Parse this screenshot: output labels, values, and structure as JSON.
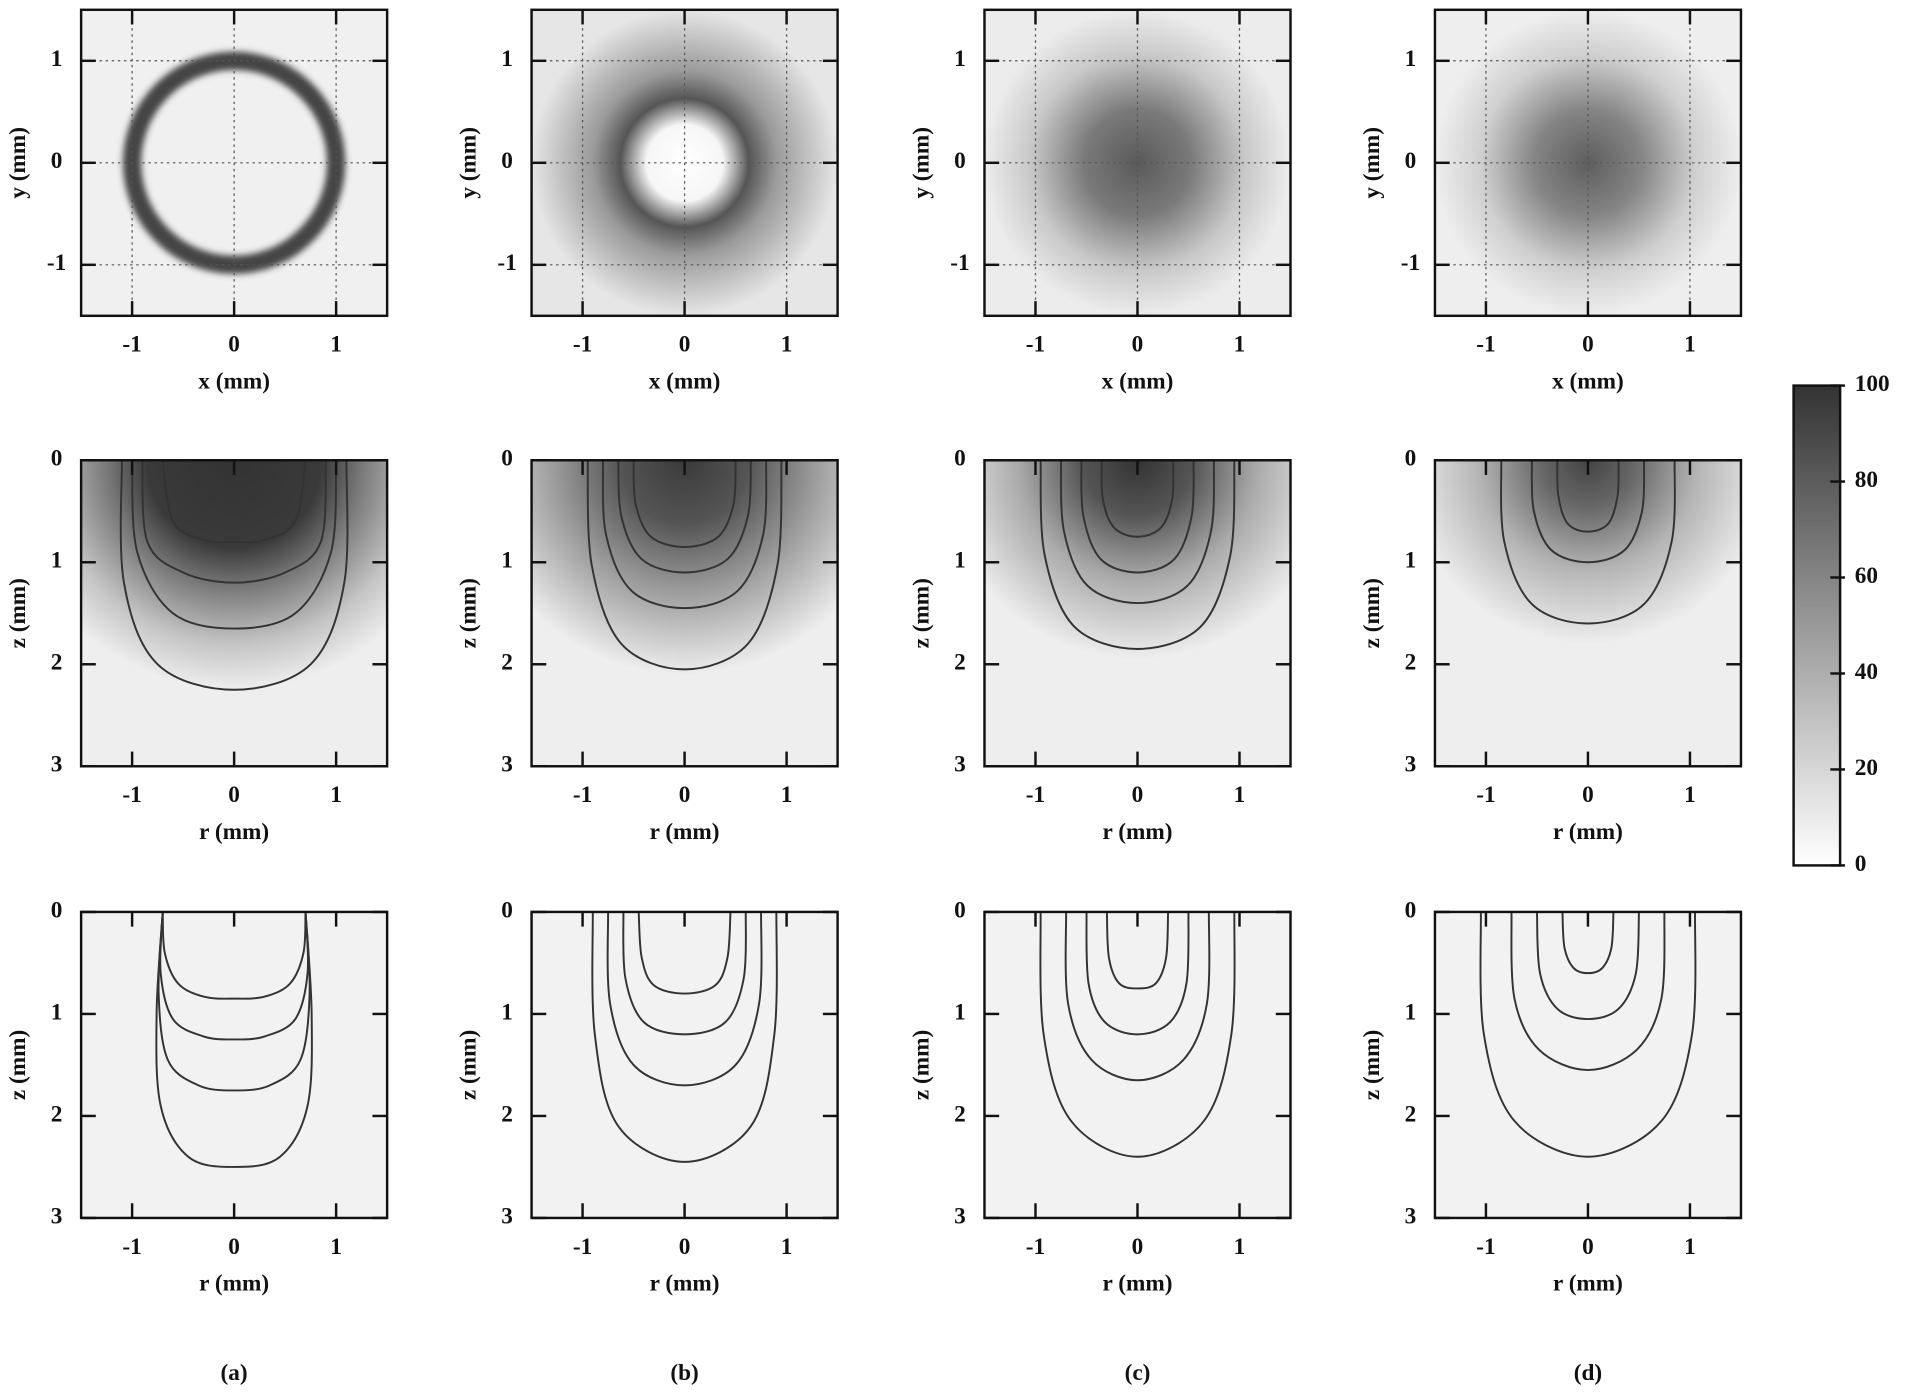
{
  "chart_data": [
    {
      "type": "heatmap",
      "xlabel": "x (mm)",
      "ylabel": "y (mm)",
      "xlim": [
        -1.5,
        1.5
      ],
      "ylim": [
        -1.5,
        1.5
      ],
      "xticks": [
        -1,
        0,
        1
      ],
      "yticks": [
        -1,
        0,
        1
      ],
      "grid": true
    },
    {
      "type": "heatmap",
      "xlabel": "x (mm)",
      "ylabel": "y (mm)",
      "xlim": [
        -1.5,
        1.5
      ],
      "ylim": [
        -1.5,
        1.5
      ],
      "xticks": [
        -1,
        0,
        1
      ],
      "yticks": [
        -1,
        0,
        1
      ],
      "grid": true
    },
    {
      "type": "heatmap",
      "xlabel": "x (mm)",
      "ylabel": "y (mm)",
      "xlim": [
        -1.5,
        1.5
      ],
      "ylim": [
        -1.5,
        1.5
      ],
      "xticks": [
        -1,
        0,
        1
      ],
      "yticks": [
        -1,
        0,
        1
      ],
      "grid": true
    },
    {
      "type": "heatmap",
      "xlabel": "x (mm)",
      "ylabel": "y (mm)",
      "xlim": [
        -1.5,
        1.5
      ],
      "ylim": [
        -1.5,
        1.5
      ],
      "xticks": [
        -1,
        0,
        1
      ],
      "yticks": [
        -1,
        0,
        1
      ],
      "grid": true
    },
    {
      "type": "heatmap_contour",
      "xlabel": "r (mm)",
      "ylabel": "z (mm)",
      "xlim": [
        -1.5,
        1.5
      ],
      "ylim": [
        3,
        0
      ],
      "xticks": [
        -1,
        0,
        1
      ],
      "yticks": [
        0,
        1,
        2,
        3
      ],
      "contours": [
        {
          "r": [
            -0.7,
            -0.6,
            -0.3,
            0,
            0.3,
            0.6,
            0.7
          ],
          "z": [
            0,
            0.6,
            0.78,
            0.8,
            0.78,
            0.6,
            0
          ]
        },
        {
          "r": [
            -0.9,
            -0.85,
            -0.5,
            0,
            0.5,
            0.85,
            0.9
          ],
          "z": [
            0,
            0.8,
            1.1,
            1.2,
            1.1,
            0.8,
            0
          ]
        },
        {
          "r": [
            -1.0,
            -0.95,
            -0.6,
            0,
            0.6,
            0.95,
            1.0
          ],
          "z": [
            0,
            0.9,
            1.5,
            1.65,
            1.5,
            0.9,
            0
          ]
        },
        {
          "r": [
            -1.1,
            -1.08,
            -0.75,
            0,
            0.75,
            1.08,
            1.1
          ],
          "z": [
            0,
            1.2,
            2.0,
            2.25,
            2.0,
            1.2,
            0
          ]
        }
      ]
    },
    {
      "type": "heatmap_contour",
      "xlabel": "r (mm)",
      "ylabel": "z (mm)",
      "xlim": [
        -1.5,
        1.5
      ],
      "ylim": [
        3,
        0
      ],
      "xticks": [
        -1,
        0,
        1
      ],
      "yticks": [
        0,
        1,
        2,
        3
      ],
      "contours": [
        {
          "r": [
            -0.5,
            -0.48,
            -0.33,
            0,
            0.33,
            0.48,
            0.5
          ],
          "z": [
            0,
            0.43,
            0.75,
            0.85,
            0.75,
            0.43,
            0
          ]
        },
        {
          "r": [
            -0.65,
            -0.62,
            -0.42,
            0,
            0.42,
            0.62,
            0.65
          ],
          "z": [
            0,
            0.55,
            0.97,
            1.1,
            0.97,
            0.55,
            0
          ]
        },
        {
          "r": [
            -0.8,
            -0.77,
            -0.52,
            0,
            0.52,
            0.77,
            0.8
          ],
          "z": [
            0,
            0.73,
            1.28,
            1.45,
            1.28,
            0.73,
            0
          ]
        },
        {
          "r": [
            -0.95,
            -0.91,
            -0.62,
            0,
            0.62,
            0.91,
            0.95
          ],
          "z": [
            0,
            1.03,
            1.8,
            2.05,
            1.8,
            1.03,
            0
          ]
        }
      ]
    },
    {
      "type": "heatmap_contour",
      "xlabel": "r (mm)",
      "ylabel": "z (mm)",
      "xlim": [
        -1.5,
        1.5
      ],
      "ylim": [
        3,
        0
      ],
      "xticks": [
        -1,
        0,
        1
      ],
      "yticks": [
        0,
        1,
        2,
        3
      ],
      "contours": [
        {
          "r": [
            -0.35,
            -0.34,
            -0.23,
            0,
            0.23,
            0.34,
            0.35
          ],
          "z": [
            0,
            0.38,
            0.66,
            0.75,
            0.66,
            0.38,
            0
          ]
        },
        {
          "r": [
            -0.55,
            -0.53,
            -0.36,
            0,
            0.36,
            0.53,
            0.55
          ],
          "z": [
            0,
            0.55,
            0.97,
            1.1,
            0.97,
            0.55,
            0
          ]
        },
        {
          "r": [
            -0.75,
            -0.72,
            -0.49,
            0,
            0.49,
            0.72,
            0.75
          ],
          "z": [
            0,
            0.7,
            1.23,
            1.4,
            1.23,
            0.7,
            0
          ]
        },
        {
          "r": [
            -0.95,
            -0.91,
            -0.62,
            0,
            0.62,
            0.91,
            0.95
          ],
          "z": [
            0,
            0.93,
            1.63,
            1.85,
            1.63,
            0.93,
            0
          ]
        }
      ]
    },
    {
      "type": "heatmap_contour",
      "xlabel": "r (mm)",
      "ylabel": "z (mm)",
      "xlim": [
        -1.5,
        1.5
      ],
      "ylim": [
        3,
        0
      ],
      "xticks": [
        -1,
        0,
        1
      ],
      "yticks": [
        0,
        1,
        2,
        3
      ],
      "contours": [
        {
          "r": [
            -0.3,
            -0.29,
            -0.2,
            0,
            0.2,
            0.29,
            0.3
          ],
          "z": [
            0,
            0.35,
            0.62,
            0.7,
            0.62,
            0.35,
            0
          ]
        },
        {
          "r": [
            -0.55,
            -0.53,
            -0.36,
            0,
            0.36,
            0.53,
            0.55
          ],
          "z": [
            0,
            0.5,
            0.88,
            1.0,
            0.88,
            0.5,
            0
          ]
        },
        {
          "r": [
            -0.85,
            -0.82,
            -0.55,
            0,
            0.55,
            0.82,
            0.85
          ],
          "z": [
            0,
            0.8,
            1.41,
            1.6,
            1.41,
            0.8,
            0
          ]
        }
      ]
    },
    {
      "type": "contour",
      "xlabel": "r (mm)",
      "ylabel": "z (mm)",
      "xlim": [
        -1.5,
        1.5
      ],
      "ylim": [
        3,
        0
      ],
      "xticks": [
        -1,
        0,
        1
      ],
      "yticks": [
        0,
        1,
        2,
        3
      ],
      "contours": [
        {
          "r": [
            -0.7,
            -0.68,
            -0.55,
            -0.3,
            0,
            0.3,
            0.55,
            0.68,
            0.7
          ],
          "z": [
            0,
            0.4,
            0.7,
            0.83,
            0.85,
            0.83,
            0.7,
            0.4,
            0
          ]
        },
        {
          "r": [
            -0.7,
            -0.72,
            -0.6,
            -0.3,
            0,
            0.3,
            0.6,
            0.72,
            0.7
          ],
          "z": [
            0,
            0.6,
            1.05,
            1.22,
            1.25,
            1.22,
            1.05,
            0.6,
            0
          ]
        },
        {
          "r": [
            -0.7,
            -0.74,
            -0.65,
            -0.35,
            0,
            0.35,
            0.65,
            0.74,
            0.7
          ],
          "z": [
            0,
            0.8,
            1.45,
            1.7,
            1.75,
            1.7,
            1.45,
            0.8,
            0
          ]
        },
        {
          "r": [
            -0.7,
            -0.76,
            -0.72,
            -0.45,
            0,
            0.45,
            0.72,
            0.76,
            0.7
          ],
          "z": [
            0,
            1.0,
            1.9,
            2.4,
            2.5,
            2.4,
            1.9,
            1.0,
            0
          ]
        }
      ]
    },
    {
      "type": "contour",
      "xlabel": "r (mm)",
      "ylabel": "z (mm)",
      "xlim": [
        -1.5,
        1.5
      ],
      "ylim": [
        3,
        0
      ],
      "xticks": [
        -1,
        0,
        1
      ],
      "yticks": [
        0,
        1,
        2,
        3
      ],
      "contours": [
        {
          "r": [
            -0.45,
            -0.42,
            -0.3,
            0,
            0.3,
            0.42,
            0.45
          ],
          "z": [
            0,
            0.45,
            0.72,
            0.8,
            0.72,
            0.45,
            0
          ]
        },
        {
          "r": [
            -0.6,
            -0.58,
            -0.4,
            0,
            0.4,
            0.58,
            0.6
          ],
          "z": [
            0,
            0.65,
            1.08,
            1.2,
            1.08,
            0.65,
            0
          ]
        },
        {
          "r": [
            -0.75,
            -0.73,
            -0.5,
            0,
            0.5,
            0.73,
            0.75
          ],
          "z": [
            0,
            0.9,
            1.5,
            1.7,
            1.5,
            0.9,
            0
          ]
        },
        {
          "r": [
            -0.9,
            -0.88,
            -0.65,
            0,
            0.65,
            0.88,
            0.9
          ],
          "z": [
            0,
            1.2,
            2.1,
            2.45,
            2.1,
            1.2,
            0
          ]
        }
      ]
    },
    {
      "type": "contour",
      "xlabel": "r (mm)",
      "ylabel": "z (mm)",
      "xlim": [
        -1.5,
        1.5
      ],
      "ylim": [
        3,
        0
      ],
      "xticks": [
        -1,
        0,
        1
      ],
      "yticks": [
        0,
        1,
        2,
        3
      ],
      "contours": [
        {
          "r": [
            -0.3,
            -0.28,
            -0.18,
            0,
            0.18,
            0.28,
            0.3
          ],
          "z": [
            0,
            0.45,
            0.7,
            0.75,
            0.7,
            0.45,
            0
          ]
        },
        {
          "r": [
            -0.5,
            -0.48,
            -0.32,
            0,
            0.32,
            0.48,
            0.5
          ],
          "z": [
            0,
            0.7,
            1.08,
            1.2,
            1.08,
            0.7,
            0
          ]
        },
        {
          "r": [
            -0.7,
            -0.68,
            -0.45,
            0,
            0.45,
            0.68,
            0.7
          ],
          "z": [
            0,
            0.9,
            1.45,
            1.65,
            1.45,
            0.9,
            0
          ]
        },
        {
          "r": [
            -0.95,
            -0.92,
            -0.65,
            0,
            0.65,
            0.92,
            0.95
          ],
          "z": [
            0,
            1.2,
            2.05,
            2.4,
            2.05,
            1.2,
            0
          ]
        }
      ]
    },
    {
      "type": "contour",
      "xlabel": "r (mm)",
      "ylabel": "z (mm)",
      "xlim": [
        -1.5,
        1.5
      ],
      "ylim": [
        3,
        0
      ],
      "xticks": [
        -1,
        0,
        1
      ],
      "yticks": [
        0,
        1,
        2,
        3
      ],
      "contours": [
        {
          "r": [
            -0.25,
            -0.23,
            -0.14,
            0,
            0.14,
            0.23,
            0.25
          ],
          "z": [
            0,
            0.35,
            0.55,
            0.6,
            0.55,
            0.35,
            0
          ]
        },
        {
          "r": [
            -0.5,
            -0.47,
            -0.3,
            0,
            0.3,
            0.47,
            0.5
          ],
          "z": [
            0,
            0.6,
            0.95,
            1.05,
            0.95,
            0.6,
            0
          ]
        },
        {
          "r": [
            -0.75,
            -0.72,
            -0.48,
            0,
            0.48,
            0.72,
            0.75
          ],
          "z": [
            0,
            0.85,
            1.35,
            1.55,
            1.35,
            0.85,
            0
          ]
        },
        {
          "r": [
            -1.05,
            -1.02,
            -0.72,
            0,
            0.72,
            1.02,
            1.05
          ],
          "z": [
            0,
            1.2,
            2.05,
            2.4,
            2.05,
            1.2,
            0
          ]
        }
      ]
    },
    {
      "type": "colorbar",
      "ylim": [
        0,
        100
      ],
      "yticks": [
        0,
        20,
        40,
        60,
        80,
        100
      ],
      "colors": [
        "#ffffff",
        "#333333"
      ]
    }
  ],
  "panel_labels": [
    "(a)",
    "(b)",
    "(c)",
    "(d)"
  ]
}
